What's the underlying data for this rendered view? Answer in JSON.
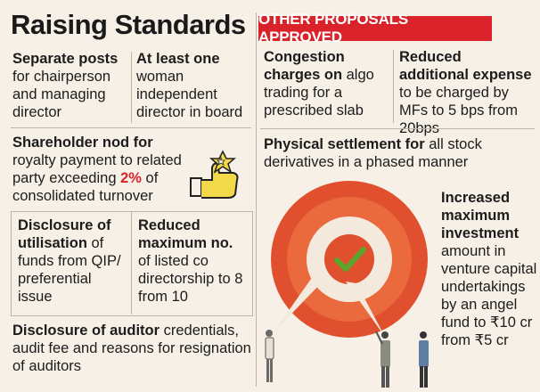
{
  "left": {
    "title": "Raising Standards",
    "separate_posts": {
      "bold": "Separate posts",
      "rest": "for chairperson and managing director"
    },
    "independent_director": {
      "bold": "At least one",
      "rest": "woman independent director in board"
    },
    "shareholder_nod": {
      "bold": "Shareholder nod for",
      "pre": "royalty payment to related party exceeding ",
      "highlight": "2%",
      "post": " of consolidated turnover"
    },
    "disclosure_utilisation": {
      "bold": "Disclosure of utilisation",
      "rest": " of funds from QIP/ preferential issue"
    },
    "reduced_directorship": {
      "bold": "Reduced maximum no.",
      "rest": "of listed co directorship to 8 from 10"
    },
    "disclosure_auditor": {
      "bold": "Disclosure of auditor",
      "rest": " credentials, audit fee and reasons for resignation of auditors"
    }
  },
  "right": {
    "banner": "OTHER PROPOSALS APPROVED",
    "congestion": {
      "bold": "Congestion charges on",
      "rest": " algo trading for a prescribed slab"
    },
    "expense": {
      "bold": "Reduced additional expense",
      "rest": " to be charged by MFs to 5 bps from 20bps"
    },
    "physical_settlement": {
      "bold": "Physical settlement for",
      "rest": " all stock derivatives in a phased manner"
    },
    "investment": {
      "bold": "Increased maximum investment",
      "rest": "amount in venture capital undertakings by an angel fund to ₹10 cr from ₹5 cr"
    }
  },
  "colors": {
    "accent": "#d9222a",
    "target_outer": "#e0502e",
    "background": "#f6f0e6",
    "check": "#5aa52a"
  },
  "icons": {
    "thumbs_up": "thumbs-up-star-icon",
    "target": "target-check-icon"
  }
}
